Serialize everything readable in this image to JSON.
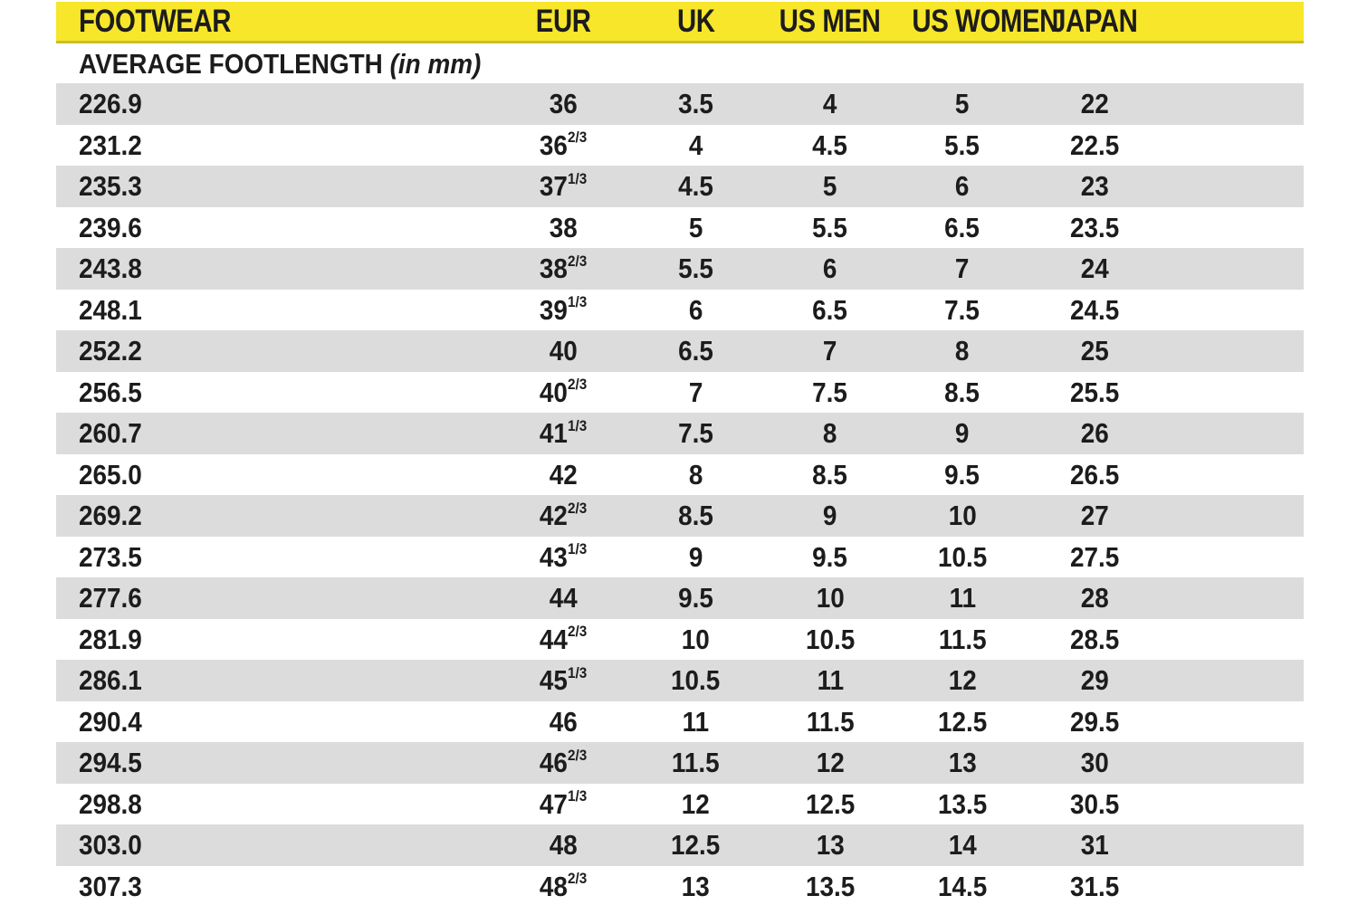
{
  "table": {
    "headers": [
      "FOOTWEAR",
      "EUR",
      "UK",
      "US MEN",
      "US WOMEN",
      "JAPAN"
    ],
    "subheader": {
      "label": "AVERAGE FOOTLENGTH",
      "note": "(in mm)"
    },
    "columns_keys": [
      "footwear",
      "eur",
      "uk",
      "us-men",
      "us-women",
      "japan"
    ],
    "rows": [
      [
        "226.9",
        "36",
        "3.5",
        "4",
        "5",
        "22"
      ],
      [
        "231.2",
        "36^2/3",
        "4",
        "4.5",
        "5.5",
        "22.5"
      ],
      [
        "235.3",
        "37^1/3",
        "4.5",
        "5",
        "6",
        "23"
      ],
      [
        "239.6",
        "38",
        "5",
        "5.5",
        "6.5",
        "23.5"
      ],
      [
        "243.8",
        "38^2/3",
        "5.5",
        "6",
        "7",
        "24"
      ],
      [
        "248.1",
        "39^1/3",
        "6",
        "6.5",
        "7.5",
        "24.5"
      ],
      [
        "252.2",
        "40",
        "6.5",
        "7",
        "8",
        "25"
      ],
      [
        "256.5",
        "40^2/3",
        "7",
        "7.5",
        "8.5",
        "25.5"
      ],
      [
        "260.7",
        "41^1/3",
        "7.5",
        "8",
        "9",
        "26"
      ],
      [
        "265.0",
        "42",
        "8",
        "8.5",
        "9.5",
        "26.5"
      ],
      [
        "269.2",
        "42^2/3",
        "8.5",
        "9",
        "10",
        "27"
      ],
      [
        "273.5",
        "43^1/3",
        "9",
        "9.5",
        "10.5",
        "27.5"
      ],
      [
        "277.6",
        "44",
        "9.5",
        "10",
        "11",
        "28"
      ],
      [
        "281.9",
        "44^2/3",
        "10",
        "10.5",
        "11.5",
        "28.5"
      ],
      [
        "286.1",
        "45^1/3",
        "10.5",
        "11",
        "12",
        "29"
      ],
      [
        "290.4",
        "46",
        "11",
        "11.5",
        "12.5",
        "29.5"
      ],
      [
        "294.5",
        "46^2/3",
        "11.5",
        "12",
        "13",
        "30"
      ],
      [
        "298.8",
        "47^1/3",
        "12",
        "12.5",
        "13.5",
        "30.5"
      ],
      [
        "303.0",
        "48",
        "12.5",
        "13",
        "14",
        "31"
      ],
      [
        "307.3",
        "48^2/3",
        "13",
        "13.5",
        "14.5",
        "31.5"
      ]
    ]
  },
  "colors": {
    "header_bg": "#f7e62a",
    "header_border": "#c9bd2e",
    "row_alt_bg": "#dcdcdd",
    "row_bg": "#ffffff",
    "text": "#1c1c1c"
  }
}
